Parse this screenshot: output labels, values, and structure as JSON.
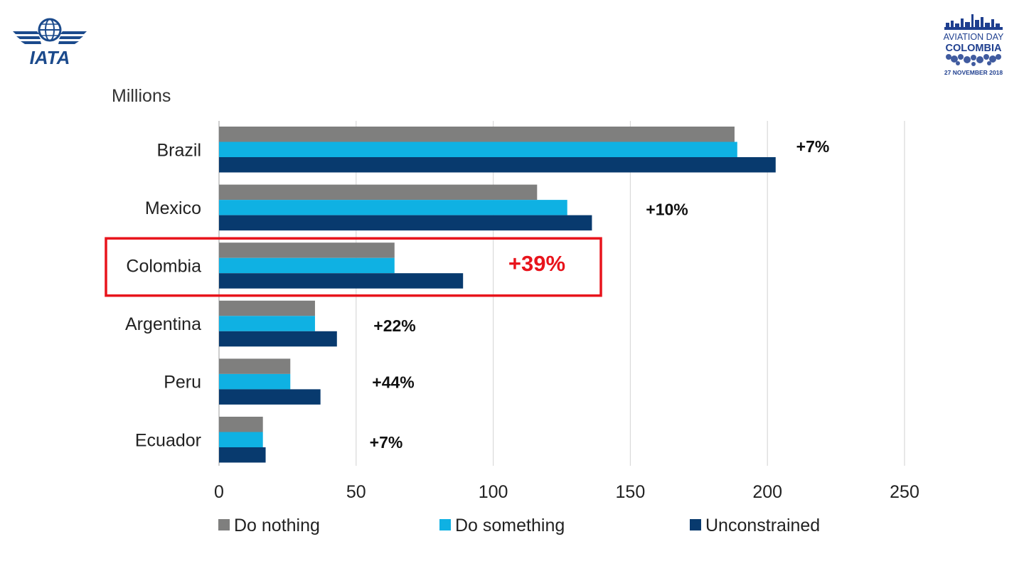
{
  "logos": {
    "iata_text": "IATA",
    "event_line1": "AVIATION DAY",
    "event_line2": "COLOMBIA",
    "event_date": "27 NOVEMBER 2018"
  },
  "colors": {
    "do_nothing": "#7f7f7e",
    "do_something": "#0fb1e3",
    "unconstrained": "#083a6e",
    "highlight": "#e8141c",
    "grid": "#d9d9d9",
    "iata_blue": "#1b4a8c"
  },
  "chart_data": {
    "type": "bar",
    "orientation": "horizontal",
    "unit_label": "Millions",
    "categories": [
      "Brazil",
      "Mexico",
      "Colombia",
      "Argentina",
      "Peru",
      "Ecuador"
    ],
    "series": [
      {
        "name": "Do nothing",
        "values": [
          188,
          116,
          64,
          35,
          26,
          16
        ]
      },
      {
        "name": "Do something",
        "values": [
          189,
          127,
          64,
          35,
          26,
          16
        ]
      },
      {
        "name": "Unconstrained",
        "values": [
          203,
          136,
          89,
          43,
          37,
          17
        ]
      }
    ],
    "annotations": [
      "+7%",
      "+10%",
      "+39%",
      "+22%",
      "+44%",
      "+7%"
    ],
    "highlighted_category": "Colombia",
    "xlim": [
      0,
      250
    ],
    "xticks": [
      0,
      50,
      100,
      150,
      200,
      250
    ],
    "grid": "vertical",
    "legend_position": "bottom"
  }
}
